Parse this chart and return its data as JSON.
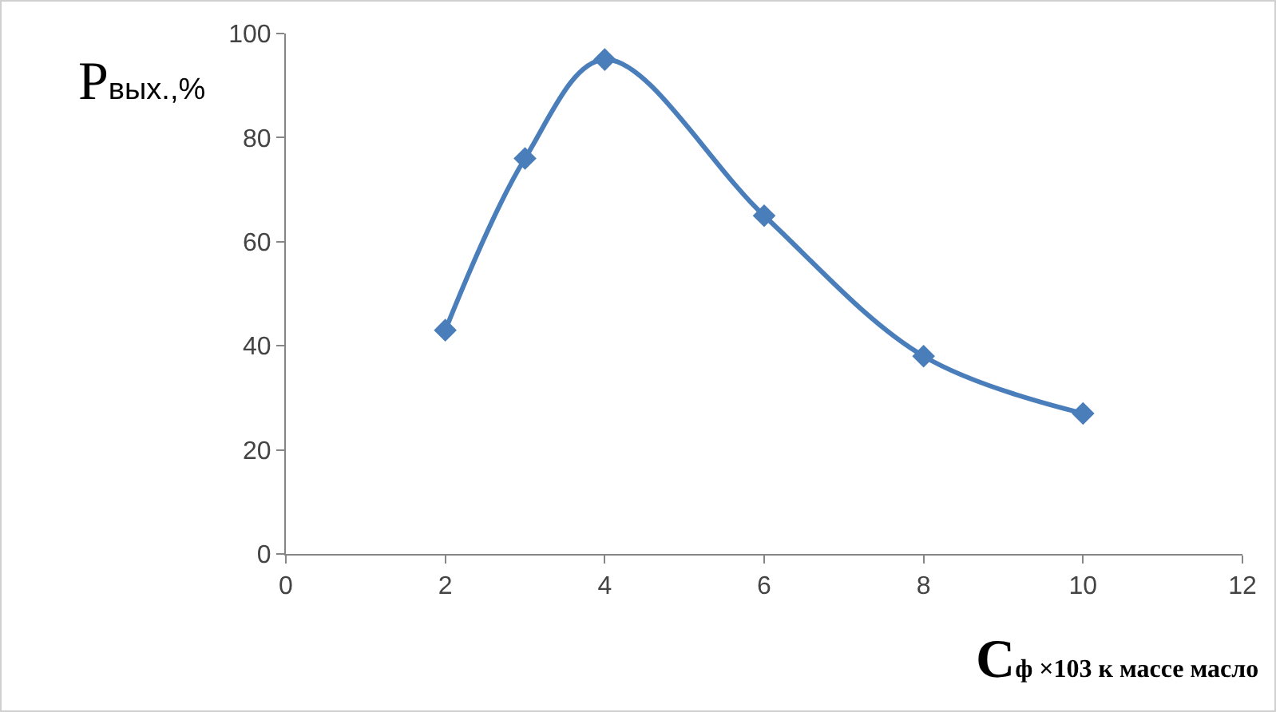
{
  "chart_data": {
    "type": "line",
    "xlabel": "Cф ×103 к массе масло",
    "ylabel": "Pвых.,%",
    "x": [
      2,
      3,
      4,
      6,
      8,
      10
    ],
    "series": [
      {
        "color": "#4a7ebb",
        "values": [
          43,
          76,
          95,
          65,
          38,
          27
        ]
      }
    ],
    "xlim": [
      0,
      12
    ],
    "xticks": [
      0,
      2,
      4,
      6,
      8,
      10,
      12
    ],
    "ylim": [
      0,
      100
    ],
    "yticks": [
      0,
      20,
      40,
      60,
      80,
      100
    ],
    "marker": "diamond",
    "line_style": "solid"
  }
}
